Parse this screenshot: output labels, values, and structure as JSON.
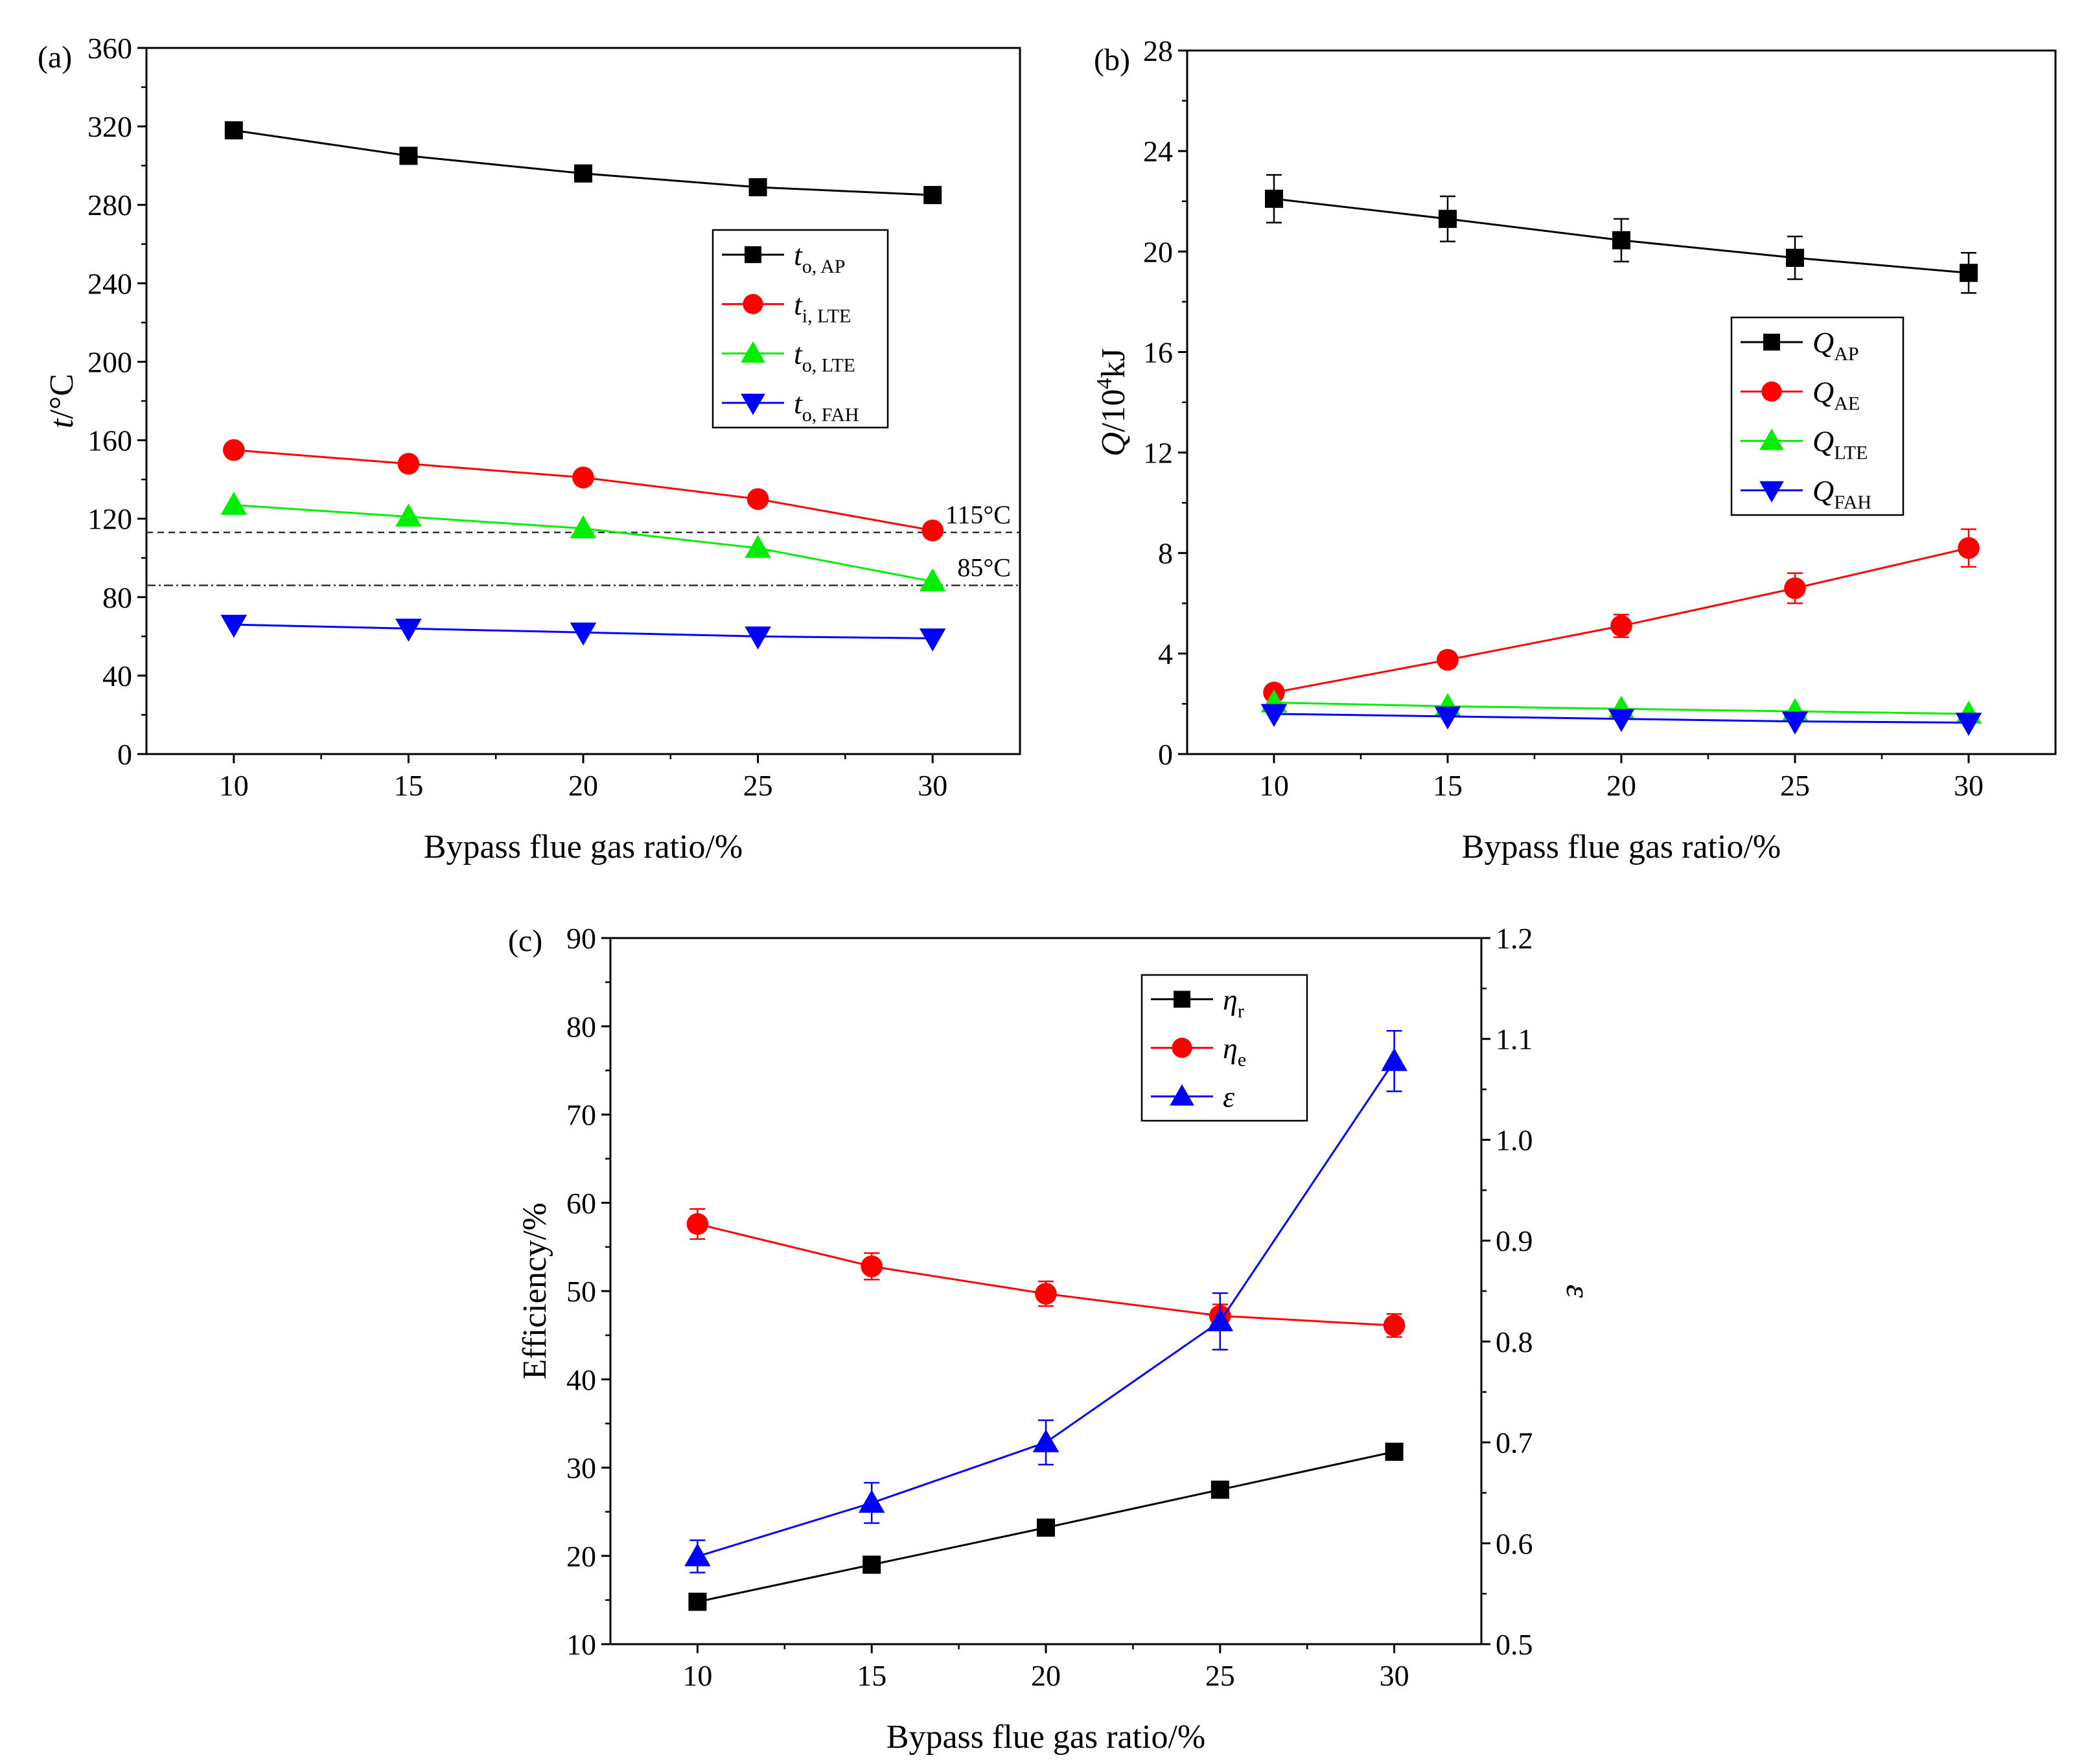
{
  "chart_data": [
    {
      "panel": "(a)",
      "type": "line",
      "xlabel": "Bypass flue gas ratio/%",
      "ylabel_main": "t",
      "ylabel_rest": "/°C",
      "x": [
        10,
        15,
        20,
        25,
        30
      ],
      "xlim": [
        7.5,
        32.5
      ],
      "ylim": [
        0,
        360
      ],
      "xticks": [
        10,
        15,
        20,
        25,
        30
      ],
      "yticks": [
        0,
        40,
        80,
        120,
        160,
        200,
        240,
        280,
        320,
        360
      ],
      "legend_position": "center-right",
      "series": [
        {
          "name": "t",
          "sub": "o, AP",
          "color": "#000000",
          "marker": "square",
          "values": [
            318,
            305,
            296,
            289,
            285
          ]
        },
        {
          "name": "t",
          "sub": "i, LTE",
          "color": "#ff0000",
          "marker": "circle",
          "values": [
            155,
            148,
            141,
            130,
            114
          ]
        },
        {
          "name": "t",
          "sub": "o, LTE",
          "color": "#00ee00",
          "marker": "triangle-up",
          "values": [
            127,
            121,
            115,
            105,
            88
          ]
        },
        {
          "name": "t",
          "sub": "o, FAH",
          "color": "#0000ff",
          "marker": "triangle-down",
          "values": [
            66,
            64,
            62,
            60,
            59
          ]
        }
      ],
      "reference_lines": [
        {
          "y": 113,
          "label": "115°C",
          "style": "dashed"
        },
        {
          "y": 86,
          "label": "85°C",
          "style": "dashdot"
        }
      ]
    },
    {
      "panel": "(b)",
      "type": "line",
      "xlabel": "Bypass flue gas ratio/%",
      "ylabel_main": "Q",
      "ylabel_rest": "/10",
      "ylabel_sup": "4",
      "ylabel_unit": "kJ",
      "x": [
        10,
        15,
        20,
        25,
        30
      ],
      "xlim": [
        7.5,
        32.5
      ],
      "ylim": [
        0,
        28
      ],
      "xticks": [
        10,
        15,
        20,
        25,
        30
      ],
      "yticks": [
        0,
        4,
        8,
        12,
        16,
        20,
        24,
        28
      ],
      "legend_position": "center-right",
      "series": [
        {
          "name": "Q",
          "sub": "AP",
          "color": "#000000",
          "marker": "square",
          "values": [
            22.1,
            21.3,
            20.45,
            19.75,
            19.15
          ],
          "errors": [
            0.95,
            0.9,
            0.85,
            0.85,
            0.8
          ]
        },
        {
          "name": "Q",
          "sub": "AE",
          "color": "#ff0000",
          "marker": "circle",
          "values": [
            2.45,
            3.75,
            5.1,
            6.6,
            8.2
          ],
          "errors": [
            0.15,
            0.3,
            0.45,
            0.6,
            0.75
          ]
        },
        {
          "name": "Q",
          "sub": "LTE",
          "color": "#00ee00",
          "marker": "triangle-up",
          "values": [
            2.05,
            1.9,
            1.8,
            1.7,
            1.6
          ]
        },
        {
          "name": "Q",
          "sub": "FAH",
          "color": "#0000ff",
          "marker": "triangle-down",
          "values": [
            1.6,
            1.5,
            1.4,
            1.3,
            1.25
          ]
        }
      ]
    },
    {
      "panel": "(c)",
      "type": "line",
      "xlabel": "Bypass flue gas ratio/%",
      "ylabel_left": "Efficiency/%",
      "ylabel_right": "ε",
      "x": [
        10,
        15,
        20,
        25,
        30
      ],
      "xlim": [
        7.5,
        32.5
      ],
      "ylim_left": [
        10,
        90
      ],
      "ylim_right": [
        0.5,
        1.2
      ],
      "xticks": [
        10,
        15,
        20,
        25,
        30
      ],
      "yticks_left": [
        10,
        20,
        30,
        40,
        50,
        60,
        70,
        80,
        90
      ],
      "yticks_right": [
        "0.5",
        "0.6",
        "0.7",
        "0.8",
        "0.9",
        "1.0",
        "1.1",
        "1.2"
      ],
      "legend_position": "top-center",
      "series": [
        {
          "name": "η",
          "sub": "r",
          "color": "#000000",
          "marker": "square",
          "axis": "left",
          "values": [
            14.8,
            19.0,
            23.2,
            27.5,
            31.8
          ]
        },
        {
          "name": "η",
          "sub": "e",
          "color": "#ff0000",
          "marker": "circle",
          "axis": "left",
          "values": [
            57.6,
            52.8,
            49.7,
            47.2,
            46.1
          ],
          "errors": [
            1.7,
            1.5,
            1.4,
            1.3,
            1.3
          ]
        },
        {
          "name": "ε",
          "sub": "",
          "color": "#0000ff",
          "marker": "triangle-up",
          "axis": "right",
          "values": [
            0.587,
            0.64,
            0.7,
            0.82,
            1.078
          ],
          "errors": [
            0.016,
            0.02,
            0.022,
            0.028,
            0.03
          ]
        }
      ]
    }
  ]
}
